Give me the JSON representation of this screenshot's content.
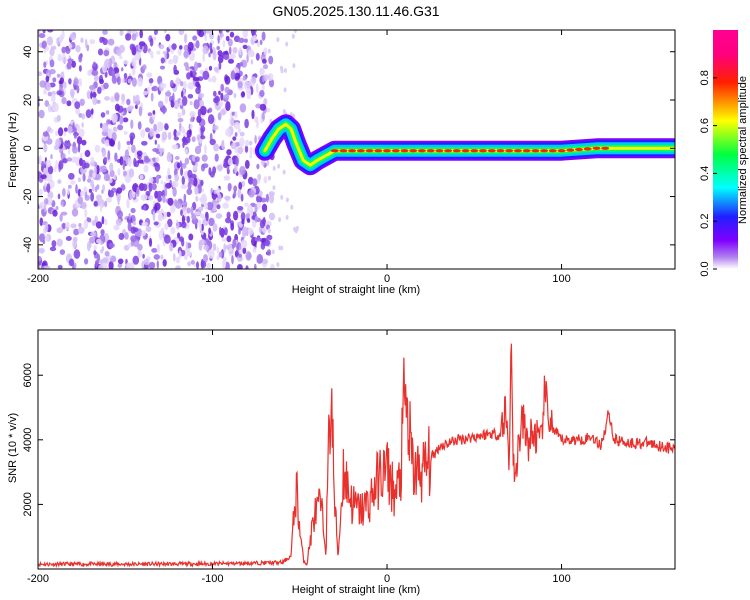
{
  "figure": {
    "title": "GN05.2025.130.11.46.G31"
  },
  "chart_data": [
    {
      "type": "heatmap",
      "xlabel": "Height of straight line (km)",
      "ylabel": "Frequency (Hz)",
      "xlim": [
        -200,
        165
      ],
      "ylim": [
        -50,
        49
      ],
      "x_ticks": [
        "-200",
        "-100",
        "0",
        "100"
      ],
      "x_tick_values": [
        -200,
        -100,
        0,
        100
      ],
      "y_ticks": [
        "-40",
        "-20",
        "0",
        "20",
        "40"
      ],
      "y_tick_values": [
        -40,
        -20,
        0,
        20,
        40
      ],
      "noise_region_x": [
        -200,
        -68
      ],
      "signal_ridge": {
        "x": [
          -70,
          -66,
          -62,
          -58,
          -55,
          -52,
          -48,
          -44,
          -40,
          -35,
          -30,
          -20,
          -10,
          0,
          20,
          40,
          60,
          80,
          100,
          120,
          140,
          165
        ],
        "freq": [
          -1,
          4,
          8,
          10,
          8,
          2,
          -5,
          -7,
          -5,
          -3,
          -1,
          -1,
          -1,
          -1,
          -1,
          -1,
          -1,
          -1,
          -1,
          0,
          0,
          0
        ]
      },
      "colorbar": {
        "label": "Normalized spectral amplitude",
        "range": [
          0,
          1
        ],
        "ticks": [
          "0.0",
          "0.2",
          "0.4",
          "0.6",
          "0.8"
        ],
        "tick_values": [
          0,
          0.2,
          0.4,
          0.6,
          0.8
        ]
      }
    },
    {
      "type": "line",
      "xlabel": "Height of straight line (km)",
      "ylabel": "SNR (10 * v/v)",
      "xlim": [
        -200,
        165
      ],
      "ylim": [
        0,
        7400
      ],
      "x_ticks": [
        "-200",
        "-100",
        "0",
        "100"
      ],
      "x_tick_values": [
        -200,
        -100,
        0,
        100
      ],
      "y_ticks": [
        "2000",
        "4000",
        "6000"
      ],
      "y_tick_values": [
        2000,
        4000,
        6000
      ],
      "series": [
        {
          "color": "#e8302c",
          "x": [
            -200,
            -150,
            -100,
            -60,
            -55,
            -52,
            -50,
            -48,
            -46,
            -42,
            -38,
            -35,
            -33,
            -32,
            -30,
            -28,
            -25,
            -20,
            -15,
            -10,
            -5,
            0,
            5,
            8,
            10,
            15,
            20,
            25,
            30,
            40,
            50,
            60,
            65,
            68,
            70,
            71,
            72,
            73,
            75,
            78,
            80,
            85,
            88,
            90,
            95,
            100,
            110,
            118,
            122,
            125,
            127,
            130,
            140,
            150,
            165
          ],
          "y": [
            150,
            150,
            160,
            200,
            400,
            2600,
            1200,
            300,
            150,
            1600,
            2000,
            600,
            4500,
            5500,
            2000,
            400,
            3100,
            2000,
            1800,
            2100,
            2800,
            3100,
            2200,
            3000,
            5400,
            3000,
            3000,
            3400,
            3800,
            4000,
            4100,
            4200,
            4150,
            5000,
            3200,
            7400,
            4500,
            2300,
            3800,
            4600,
            3900,
            4200,
            3700,
            5400,
            4300,
            4000,
            4000,
            4100,
            3800,
            4300,
            4900,
            4000,
            3900,
            3900,
            3700
          ]
        }
      ]
    }
  ]
}
